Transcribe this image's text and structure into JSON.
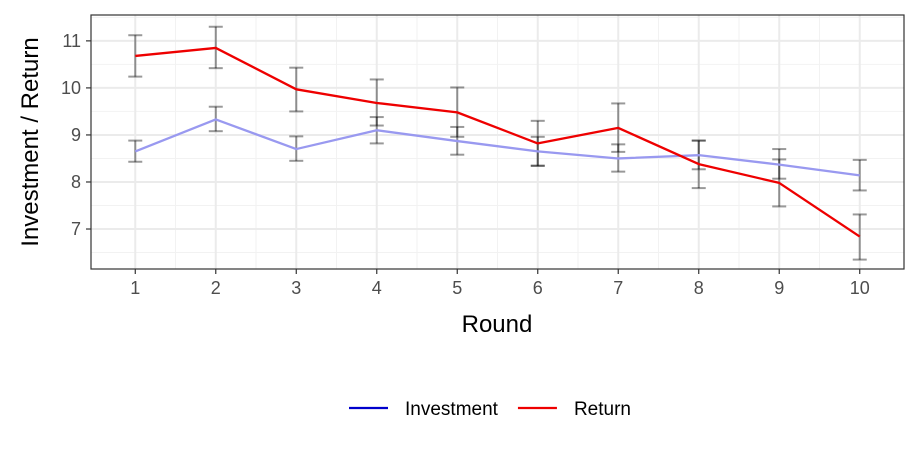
{
  "chart_data": {
    "type": "line",
    "title": "",
    "xlabel": "Round",
    "ylabel": "Investment / Return",
    "x": [
      1,
      2,
      3,
      4,
      5,
      6,
      7,
      8,
      9,
      10
    ],
    "xlim": [
      0.45,
      10.55
    ],
    "ylim": [
      6.15,
      11.55
    ],
    "yticks": [
      7,
      8,
      9,
      10,
      11
    ],
    "grid": true,
    "legend_position": "bottom",
    "series": [
      {
        "name": "Investment",
        "legend_color": "#0000cc",
        "line_color": "#9999f0",
        "values": [
          8.65,
          9.33,
          8.7,
          9.1,
          8.87,
          8.65,
          8.5,
          8.57,
          8.37,
          8.14
        ],
        "error_low": [
          8.43,
          9.08,
          8.45,
          8.82,
          8.58,
          8.35,
          8.22,
          8.27,
          8.07,
          7.82
        ],
        "error_high": [
          8.88,
          9.6,
          8.97,
          9.38,
          9.17,
          8.96,
          8.8,
          8.88,
          8.7,
          8.47
        ]
      },
      {
        "name": "Return",
        "legend_color": "#ee0000",
        "line_color": "#ee0000",
        "values": [
          10.68,
          10.85,
          9.97,
          9.68,
          9.48,
          8.82,
          9.15,
          8.38,
          7.98,
          6.84
        ],
        "error_low": [
          10.24,
          10.42,
          9.5,
          9.2,
          8.96,
          8.34,
          8.64,
          7.87,
          7.48,
          6.35
        ],
        "error_high": [
          11.12,
          11.3,
          10.43,
          10.18,
          10.01,
          9.3,
          9.67,
          8.88,
          8.48,
          7.31
        ]
      }
    ],
    "error_bar_color": "#000000"
  }
}
